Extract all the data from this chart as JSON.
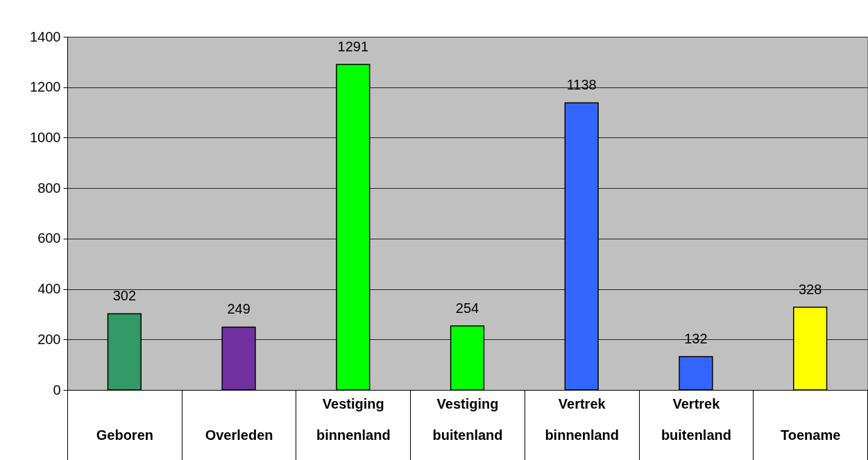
{
  "chart_data": {
    "type": "bar",
    "categories": [
      "Geboren",
      "Overleden",
      "Vestiging binnenland",
      "Vestiging buitenland",
      "Vertrek binnenland",
      "Vertrek buitenland",
      "Toename"
    ],
    "values": [
      302,
      249,
      1291,
      254,
      1138,
      132,
      328
    ],
    "colors": [
      "#339966",
      "#7030a0",
      "#00ff00",
      "#00ff00",
      "#3366ff",
      "#3366ff",
      "#ffff00"
    ],
    "ylim": [
      0,
      1400
    ],
    "yticks": [
      0,
      200,
      400,
      600,
      800,
      1000,
      1200,
      1400
    ],
    "grid": "y",
    "data_labels": true
  }
}
